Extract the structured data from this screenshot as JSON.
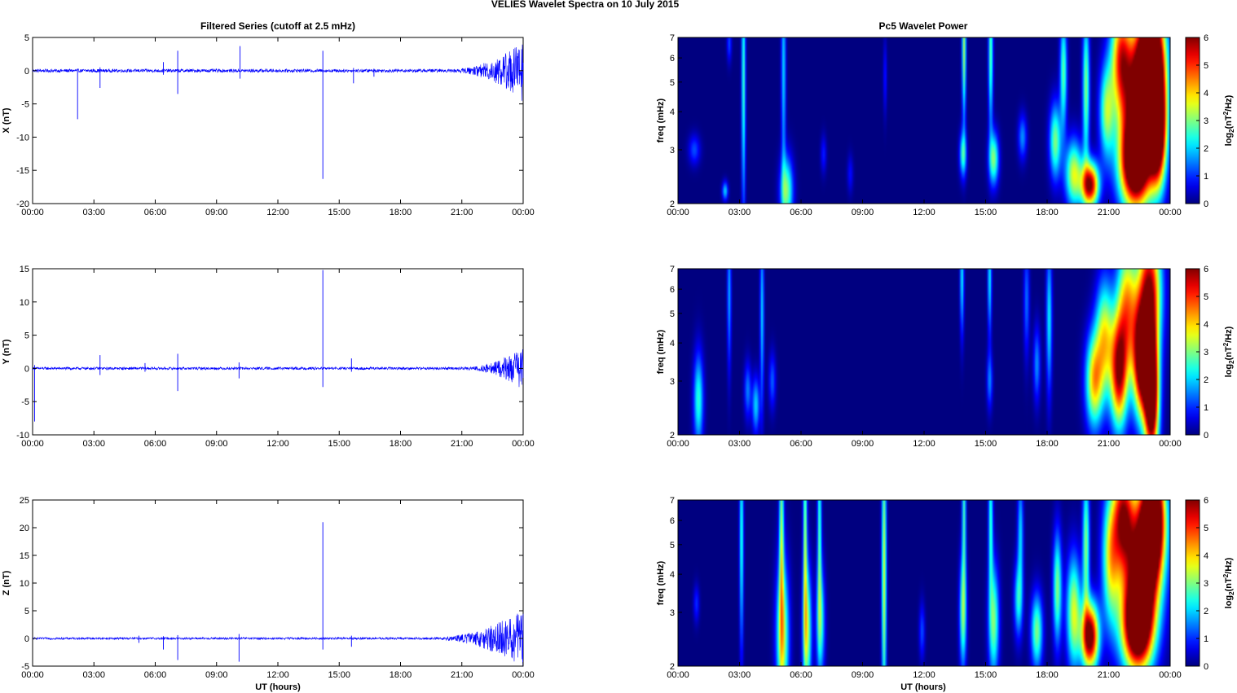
{
  "figure": {
    "suptitle": "VELIES Wavelet Spectra on 10 July      2015",
    "left_title": "Filtered Series (cutoff at 2.5 mHz)",
    "right_title": "Pc5 Wavelet Power",
    "time_xlabel": "UT (hours)",
    "freq_ylabel": "freq (mHz)",
    "colorbar_label_base": "log",
    "colorbar_label_sub": "2",
    "colorbar_label_open": "(nT",
    "colorbar_label_sup": "2",
    "colorbar_label_close": "/Hz)"
  },
  "chart_data": [
    {
      "type": "line",
      "panel": "filtered-x",
      "title": "Filtered Series (cutoff at 2.5 mHz)",
      "ylabel": "X (nT)",
      "xlabel": "",
      "xlim": [
        0,
        24
      ],
      "ylim": [
        -20,
        5
      ],
      "xticks": [
        "00:00",
        "03:00",
        "06:00",
        "09:00",
        "12:00",
        "15:00",
        "18:00",
        "21:00",
        "00:00"
      ],
      "yticks": [
        "5",
        "0",
        "-5",
        "-10",
        "-15",
        "-20"
      ],
      "ytick_values": [
        5,
        0,
        -5,
        -10,
        -15,
        -20
      ],
      "color": "#0000ff",
      "noise_amplitude": 0.25,
      "spikes": [
        {
          "x": 2.2,
          "min": -7.3,
          "max": 0.3
        },
        {
          "x": 3.3,
          "min": -2.6,
          "max": 0.5
        },
        {
          "x": 6.4,
          "min": -0.6,
          "max": 1.3
        },
        {
          "x": 7.1,
          "min": -3.5,
          "max": 3.0
        },
        {
          "x": 10.15,
          "min": -1.2,
          "max": 3.7
        },
        {
          "x": 14.2,
          "min": -16.3,
          "max": 3.0
        },
        {
          "x": 15.7,
          "min": -1.9,
          "max": 0.4
        },
        {
          "x": 16.7,
          "min": -0.9,
          "max": 0.3
        }
      ],
      "oscillation": {
        "x_start": 20.5,
        "x_end": 24,
        "max_amplitude": 4.5
      }
    },
    {
      "type": "line",
      "panel": "filtered-y",
      "title": "",
      "ylabel": "Y (nT)",
      "xlabel": "",
      "xlim": [
        0,
        24
      ],
      "ylim": [
        -10,
        15
      ],
      "xticks": [
        "00:00",
        "03:00",
        "06:00",
        "09:00",
        "12:00",
        "15:00",
        "18:00",
        "21:00",
        "00:00"
      ],
      "yticks": [
        "15",
        "10",
        "5",
        "0",
        "-5",
        "-10"
      ],
      "ytick_values": [
        15,
        10,
        5,
        0,
        -5,
        -10
      ],
      "color": "#0000ff",
      "noise_amplitude": 0.2,
      "spikes": [
        {
          "x": 0.1,
          "min": -8.0,
          "max": 0.5
        },
        {
          "x": 3.3,
          "min": -1.0,
          "max": 2.0
        },
        {
          "x": 5.5,
          "min": -0.5,
          "max": 0.8
        },
        {
          "x": 7.1,
          "min": -3.4,
          "max": 2.2
        },
        {
          "x": 10.1,
          "min": -1.5,
          "max": 0.9
        },
        {
          "x": 14.2,
          "min": -2.8,
          "max": 14.8
        },
        {
          "x": 15.6,
          "min": -0.5,
          "max": 1.5
        }
      ],
      "oscillation": {
        "x_start": 21.0,
        "x_end": 24,
        "max_amplitude": 3.0
      }
    },
    {
      "type": "line",
      "panel": "filtered-z",
      "title": "",
      "ylabel": "Z (nT)",
      "xlabel": "UT (hours)",
      "xlim": [
        0,
        24
      ],
      "ylim": [
        -5,
        25
      ],
      "xticks": [
        "00:00",
        "03:00",
        "06:00",
        "09:00",
        "12:00",
        "15:00",
        "18:00",
        "21:00",
        "00:00"
      ],
      "yticks": [
        "25",
        "20",
        "15",
        "10",
        "5",
        "0",
        "-5"
      ],
      "ytick_values": [
        25,
        20,
        15,
        10,
        5,
        0,
        -5
      ],
      "color": "#0000ff",
      "noise_amplitude": 0.2,
      "spikes": [
        {
          "x": 5.2,
          "min": -0.8,
          "max": 0.5
        },
        {
          "x": 6.4,
          "min": -2.0,
          "max": 0.4
        },
        {
          "x": 7.1,
          "min": -3.9,
          "max": 0.6
        },
        {
          "x": 10.1,
          "min": -4.2,
          "max": 0.8
        },
        {
          "x": 14.2,
          "min": -2.0,
          "max": 21.0
        },
        {
          "x": 15.6,
          "min": -1.5,
          "max": 0.5
        }
      ],
      "oscillation": {
        "x_start": 19.5,
        "x_end": 24,
        "max_amplitude": 5.0
      }
    },
    {
      "type": "heatmap",
      "panel": "wavelet-x",
      "title": "Pc5 Wavelet Power",
      "ylabel": "freq (mHz)",
      "xlabel": "",
      "xlim": [
        0,
        24
      ],
      "ylim": [
        2,
        7
      ],
      "yscale": "log",
      "xticks": [
        "00:00",
        "03:00",
        "06:00",
        "09:00",
        "12:00",
        "15:00",
        "18:00",
        "21:00",
        "00:00"
      ],
      "yticks": [
        "7",
        "6",
        "5",
        "4",
        "3",
        "2"
      ],
      "ytick_values": [
        7,
        6,
        5,
        4,
        3,
        2
      ],
      "colorbar": {
        "colormap": "jet",
        "range": [
          0,
          6
        ],
        "ticks": [
          "6",
          "5",
          "4",
          "3",
          "2",
          "1",
          "0"
        ]
      },
      "features": [
        {
          "t": 0.8,
          "f": 3.0,
          "p": 1.2,
          "dt": 0.2,
          "df": 0.08
        },
        {
          "t": 2.3,
          "f": 2.2,
          "p": 2.0,
          "dt": 0.1,
          "df": 0.05
        },
        {
          "t": 2.5,
          "f": 6.7,
          "p": 1.2,
          "dt": 0.08,
          "df": 0.1
        },
        {
          "t": 3.2,
          "f": 5.0,
          "p": 2.6,
          "dt": 0.07,
          "df": 0.7
        },
        {
          "t": 5.3,
          "f": 2.2,
          "p": 3.0,
          "dt": 0.22,
          "df": 0.18
        },
        {
          "t": 5.15,
          "f": 5.5,
          "p": 2.0,
          "dt": 0.08,
          "df": 0.6
        },
        {
          "t": 7.1,
          "f": 2.9,
          "p": 0.9,
          "dt": 0.1,
          "df": 0.1
        },
        {
          "t": 8.4,
          "f": 2.5,
          "p": 0.8,
          "dt": 0.1,
          "df": 0.1
        },
        {
          "t": 10.1,
          "f": 5.2,
          "p": 0.9,
          "dt": 0.06,
          "df": 0.2
        },
        {
          "t": 13.9,
          "f": 2.9,
          "p": 2.5,
          "dt": 0.12,
          "df": 0.12
        },
        {
          "t": 13.95,
          "f": 6.5,
          "p": 3.2,
          "dt": 0.07,
          "df": 0.4
        },
        {
          "t": 15.4,
          "f": 2.8,
          "p": 3.0,
          "dt": 0.17,
          "df": 0.14
        },
        {
          "t": 15.25,
          "f": 6.2,
          "p": 2.8,
          "dt": 0.08,
          "df": 0.4
        },
        {
          "t": 16.8,
          "f": 3.3,
          "p": 1.6,
          "dt": 0.15,
          "df": 0.12
        },
        {
          "t": 18.4,
          "f": 3.2,
          "p": 3.0,
          "dt": 0.2,
          "df": 0.2
        },
        {
          "t": 18.8,
          "f": 5.4,
          "p": 2.8,
          "dt": 0.12,
          "df": 0.3
        },
        {
          "t": 19.3,
          "f": 2.5,
          "p": 3.5,
          "dt": 0.3,
          "df": 0.18
        },
        {
          "t": 19.9,
          "f": 4.8,
          "p": 3.0,
          "dt": 0.12,
          "df": 0.4
        },
        {
          "t": 20.1,
          "f": 2.3,
          "p": 6.0,
          "dt": 0.3,
          "df": 0.12
        },
        {
          "t": 20.9,
          "f": 4.0,
          "p": 3.0,
          "dt": 0.25,
          "df": 0.25
        },
        {
          "t": 21.6,
          "f": 6.0,
          "p": 4.5,
          "dt": 0.35,
          "df": 0.3
        },
        {
          "t": 22.3,
          "f": 2.7,
          "p": 7.5,
          "dt": 0.55,
          "df": 0.25
        },
        {
          "t": 22.6,
          "f": 4.5,
          "p": 6.5,
          "dt": 0.6,
          "df": 0.35
        },
        {
          "t": 23.1,
          "f": 6.2,
          "p": 7.0,
          "dt": 0.45,
          "df": 0.3
        },
        {
          "t": 23.4,
          "f": 3.5,
          "p": 7.0,
          "dt": 0.3,
          "df": 0.3
        }
      ]
    },
    {
      "type": "heatmap",
      "panel": "wavelet-y",
      "title": "",
      "ylabel": "freq (mHz)",
      "xlabel": "",
      "xlim": [
        0,
        24
      ],
      "ylim": [
        2,
        7
      ],
      "yscale": "log",
      "xticks": [
        "00:00",
        "03:00",
        "06:00",
        "09:00",
        "12:00",
        "15:00",
        "18:00",
        "21:00",
        "00:00"
      ],
      "yticks": [
        "7",
        "6",
        "5",
        "4",
        "3",
        "2"
      ],
      "ytick_values": [
        7,
        6,
        5,
        4,
        3,
        2
      ],
      "colorbar": {
        "colormap": "jet",
        "range": [
          0,
          6
        ],
        "ticks": [
          "6",
          "5",
          "4",
          "3",
          "2",
          "1",
          "0"
        ]
      },
      "features": [
        {
          "t": 1.0,
          "f": 2.6,
          "p": 2.5,
          "dt": 0.17,
          "df": 0.25
        },
        {
          "t": 2.5,
          "f": 5.8,
          "p": 1.8,
          "dt": 0.07,
          "df": 0.4
        },
        {
          "t": 3.4,
          "f": 2.8,
          "p": 1.5,
          "dt": 0.12,
          "df": 0.15
        },
        {
          "t": 3.8,
          "f": 2.5,
          "p": 2.0,
          "dt": 0.13,
          "df": 0.15
        },
        {
          "t": 4.1,
          "f": 5.0,
          "p": 2.0,
          "dt": 0.07,
          "df": 0.5
        },
        {
          "t": 4.6,
          "f": 3.0,
          "p": 1.3,
          "dt": 0.12,
          "df": 0.15
        },
        {
          "t": 13.85,
          "f": 6.5,
          "p": 2.2,
          "dt": 0.07,
          "df": 0.3
        },
        {
          "t": 15.2,
          "f": 3.0,
          "p": 1.5,
          "dt": 0.1,
          "df": 0.15
        },
        {
          "t": 15.2,
          "f": 6.5,
          "p": 2.2,
          "dt": 0.07,
          "df": 0.3
        },
        {
          "t": 17.0,
          "f": 5.5,
          "p": 1.4,
          "dt": 0.1,
          "df": 0.3
        },
        {
          "t": 17.5,
          "f": 3.4,
          "p": 1.6,
          "dt": 0.12,
          "df": 0.2
        },
        {
          "t": 18.1,
          "f": 4.8,
          "p": 2.2,
          "dt": 0.1,
          "df": 0.4
        },
        {
          "t": 20.3,
          "f": 3.0,
          "p": 4.0,
          "dt": 0.3,
          "df": 0.25
        },
        {
          "t": 20.8,
          "f": 4.2,
          "p": 3.5,
          "dt": 0.3,
          "df": 0.3
        },
        {
          "t": 21.5,
          "f": 3.2,
          "p": 5.5,
          "dt": 0.3,
          "df": 0.3
        },
        {
          "t": 21.9,
          "f": 5.3,
          "p": 4.0,
          "dt": 0.35,
          "df": 0.35
        },
        {
          "t": 22.6,
          "f": 3.5,
          "p": 6.5,
          "dt": 0.3,
          "df": 0.3
        },
        {
          "t": 23.1,
          "f": 2.7,
          "p": 7.5,
          "dt": 0.25,
          "df": 0.35
        },
        {
          "t": 23.0,
          "f": 6.0,
          "p": 5.5,
          "dt": 0.4,
          "df": 0.35
        }
      ]
    },
    {
      "type": "heatmap",
      "panel": "wavelet-z",
      "title": "",
      "ylabel": "freq (mHz)",
      "xlabel": "UT (hours)",
      "xlim": [
        0,
        24
      ],
      "ylim": [
        2,
        7
      ],
      "yscale": "log",
      "xticks": [
        "00:00",
        "03:00",
        "06:00",
        "09:00",
        "12:00",
        "15:00",
        "18:00",
        "21:00",
        "00:00"
      ],
      "yticks": [
        "7",
        "6",
        "5",
        "4",
        "3",
        "2"
      ],
      "ytick_values": [
        7,
        6,
        5,
        4,
        3,
        2
      ],
      "colorbar": {
        "colormap": "jet",
        "range": [
          0,
          6
        ],
        "ticks": [
          "6",
          "5",
          "4",
          "3",
          "2",
          "1",
          "0"
        ]
      },
      "features": [
        {
          "t": 0.9,
          "f": 3.2,
          "p": 1.0,
          "dt": 0.1,
          "df": 0.1
        },
        {
          "t": 3.1,
          "f": 5.3,
          "p": 2.5,
          "dt": 0.07,
          "df": 0.6
        },
        {
          "t": 5.1,
          "f": 2.5,
          "p": 3.5,
          "dt": 0.22,
          "df": 0.4
        },
        {
          "t": 5.05,
          "f": 5.5,
          "p": 3.0,
          "dt": 0.08,
          "df": 0.6
        },
        {
          "t": 6.3,
          "f": 2.6,
          "p": 3.3,
          "dt": 0.15,
          "df": 0.35
        },
        {
          "t": 6.2,
          "f": 5.5,
          "p": 3.0,
          "dt": 0.07,
          "df": 0.6
        },
        {
          "t": 6.95,
          "f": 2.8,
          "p": 2.6,
          "dt": 0.15,
          "df": 0.3
        },
        {
          "t": 6.9,
          "f": 5.8,
          "p": 2.6,
          "dt": 0.07,
          "df": 0.5
        },
        {
          "t": 10.05,
          "f": 4.0,
          "p": 3.5,
          "dt": 0.08,
          "df": 0.8
        },
        {
          "t": 11.9,
          "f": 2.6,
          "p": 1.2,
          "dt": 0.1,
          "df": 0.15
        },
        {
          "t": 13.9,
          "f": 3.0,
          "p": 3.0,
          "dt": 0.12,
          "df": 0.3
        },
        {
          "t": 13.95,
          "f": 6.5,
          "p": 2.5,
          "dt": 0.07,
          "df": 0.4
        },
        {
          "t": 15.4,
          "f": 2.8,
          "p": 3.0,
          "dt": 0.18,
          "df": 0.3
        },
        {
          "t": 15.25,
          "f": 6.0,
          "p": 2.5,
          "dt": 0.08,
          "df": 0.4
        },
        {
          "t": 16.6,
          "f": 3.3,
          "p": 2.3,
          "dt": 0.15,
          "df": 0.2
        },
        {
          "t": 16.7,
          "f": 5.5,
          "p": 2.0,
          "dt": 0.1,
          "df": 0.3
        },
        {
          "t": 17.5,
          "f": 2.6,
          "p": 3.0,
          "dt": 0.2,
          "df": 0.2
        },
        {
          "t": 18.5,
          "f": 3.6,
          "p": 3.0,
          "dt": 0.15,
          "df": 0.3
        },
        {
          "t": 19.3,
          "f": 3.0,
          "p": 3.5,
          "dt": 0.25,
          "df": 0.3
        },
        {
          "t": 20.1,
          "f": 2.5,
          "p": 6.5,
          "dt": 0.3,
          "df": 0.18
        },
        {
          "t": 19.9,
          "f": 5.0,
          "p": 3.0,
          "dt": 0.12,
          "df": 0.4
        },
        {
          "t": 21.1,
          "f": 4.5,
          "p": 3.5,
          "dt": 0.3,
          "df": 0.35
        },
        {
          "t": 21.7,
          "f": 6.2,
          "p": 5.0,
          "dt": 0.35,
          "df": 0.3
        },
        {
          "t": 22.4,
          "f": 2.7,
          "p": 7.5,
          "dt": 0.55,
          "df": 0.25
        },
        {
          "t": 22.7,
          "f": 4.5,
          "p": 6.5,
          "dt": 0.6,
          "df": 0.35
        },
        {
          "t": 23.2,
          "f": 6.3,
          "p": 7.0,
          "dt": 0.4,
          "df": 0.3
        }
      ]
    }
  ]
}
